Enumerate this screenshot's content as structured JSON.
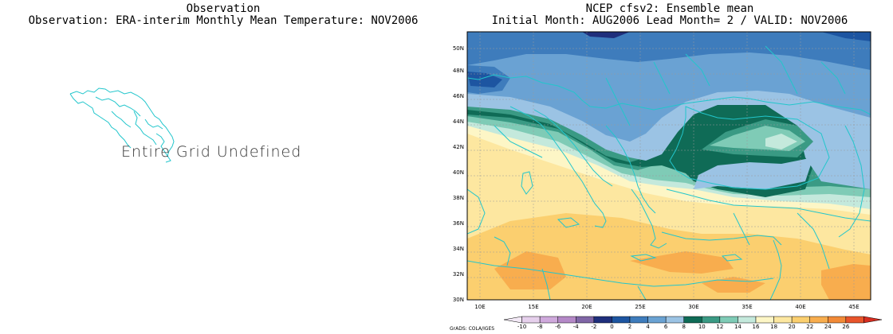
{
  "left_panel": {
    "title_line1": "Observation",
    "title_line2": "Observation: ERA-interim Monthly Mean Temperature: NOV2006",
    "message": "Entire Grid Undefined"
  },
  "right_panel": {
    "title_line1": "NCEP cfsv2: Ensemble mean",
    "title_line2": "Initial Month: AUG2006  Lead Month= 2 / VALID: NOV2006",
    "lat_labels": [
      "30N",
      "32N",
      "34N",
      "36N",
      "38N",
      "40N",
      "42N",
      "44N",
      "46N",
      "48N",
      "50N"
    ],
    "lon_labels": [
      "10E",
      "15E",
      "20E",
      "25E",
      "30E",
      "35E",
      "40E",
      "45E"
    ],
    "map_extent": {
      "lon_min": 8,
      "lon_max": 46,
      "lat_min": 30,
      "lat_max": 51
    }
  },
  "colorbar": {
    "labels": [
      "-10",
      "-8",
      "-6",
      "-4",
      "-2",
      "0",
      "2",
      "4",
      "6",
      "8",
      "10",
      "12",
      "14",
      "16",
      "18",
      "20",
      "22",
      "24",
      "26"
    ],
    "colors": [
      "#f3e9f6",
      "#e6d0ec",
      "#cfa9dc",
      "#b488c7",
      "#8066a6",
      "#1f2f7c",
      "#1d55a1",
      "#3e7cbc",
      "#6aa2d3",
      "#9bc3e4",
      "#0f6b56",
      "#3a9a84",
      "#7fcbb6",
      "#c4e9dc",
      "#fdf6c6",
      "#fde7a0",
      "#fbcf6f",
      "#f8ad4e",
      "#f28a37",
      "#e8542b",
      "#d62d20"
    ],
    "credit": "GrADS: COLA/IGES"
  }
}
